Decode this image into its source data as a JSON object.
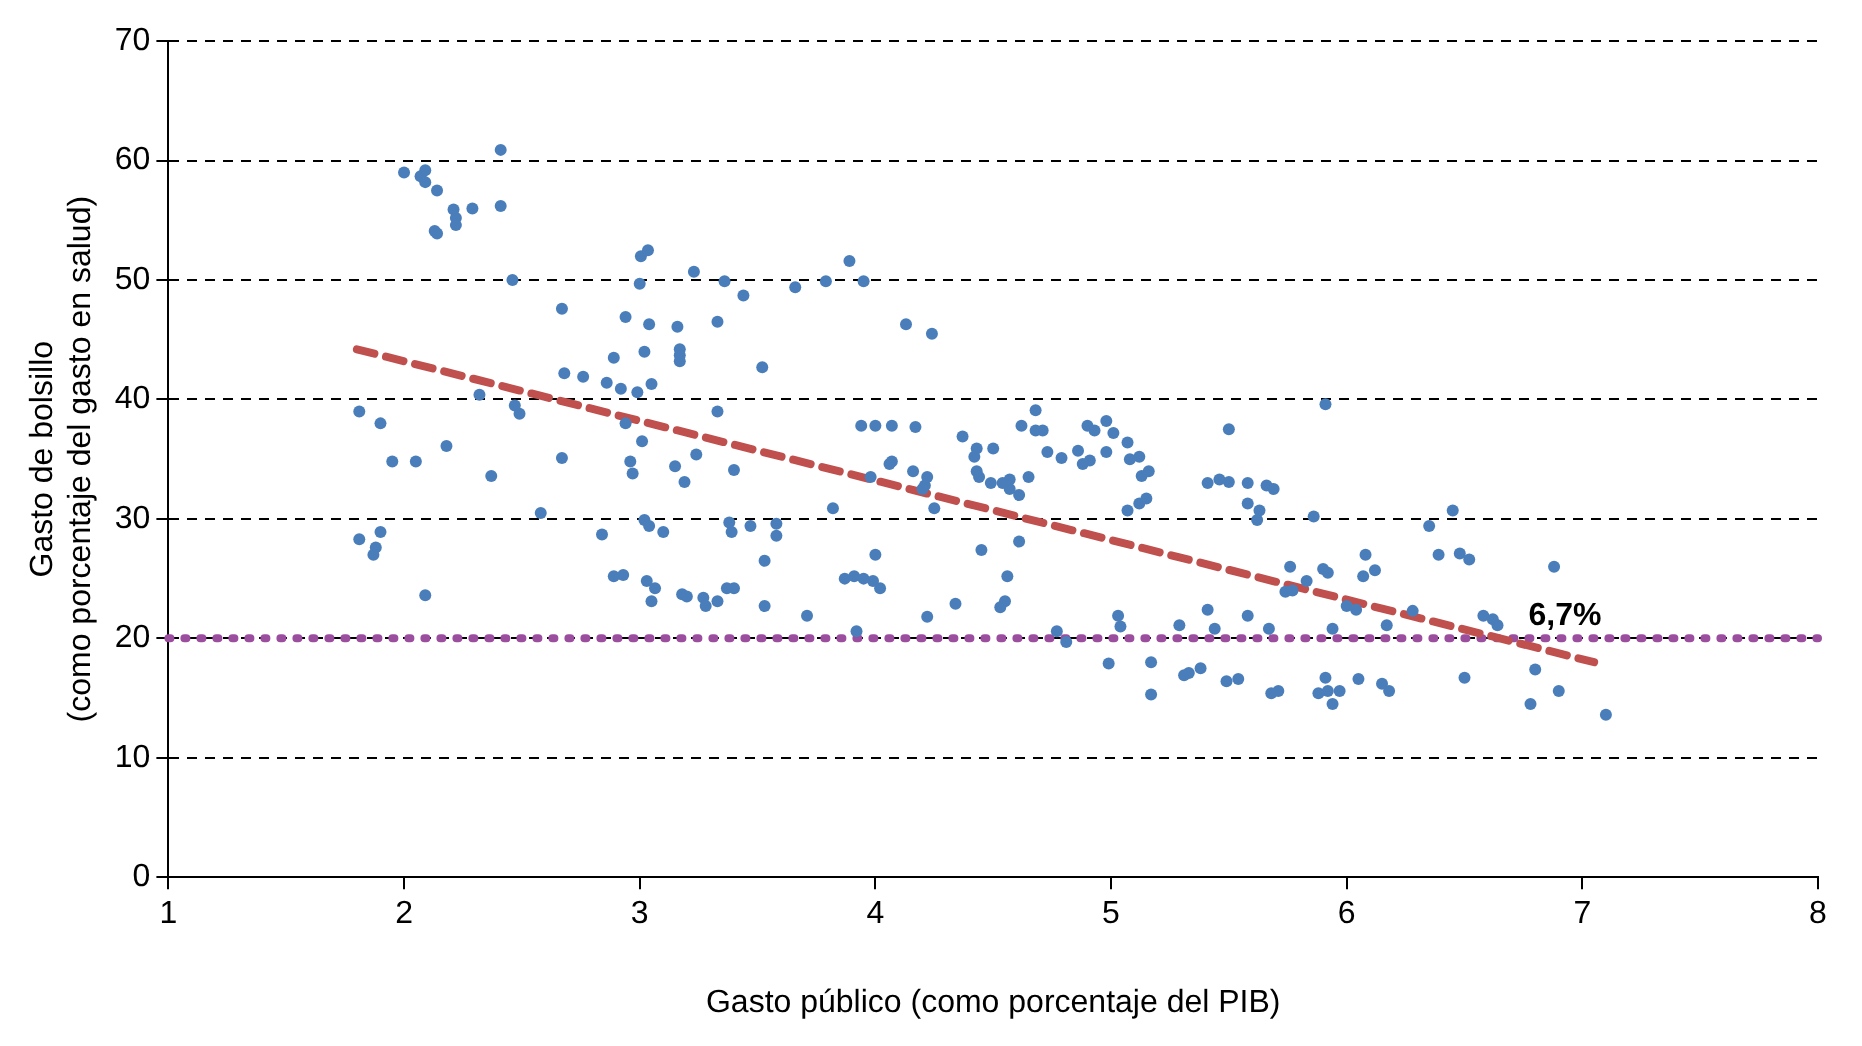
{
  "chart_data": {
    "type": "scatter",
    "xlabel": "Gasto público (como porcentaje del PIB)",
    "ylabel": "Gasto de bolsillo\n(como porcentaje del gasto en salud)",
    "xlim": [
      1,
      8
    ],
    "xticks": [
      1,
      2,
      3,
      4,
      5,
      6,
      7,
      8
    ],
    "ylim": [
      0,
      70
    ],
    "yticks": [
      0,
      10,
      20,
      30,
      40,
      50,
      60,
      70
    ],
    "grid": "y",
    "legend": false,
    "series": [
      {
        "color": "#4a7ebb",
        "marker": "circle",
        "x": [
          1.81,
          1.81,
          1.9,
          1.88,
          1.9,
          1.87,
          1.95,
          2.0,
          2.07,
          2.09,
          2.09,
          2.14,
          2.13,
          2.14,
          2.21,
          2.22,
          2.22,
          2.29,
          2.41,
          2.41,
          2.18,
          2.05,
          2.09,
          2.32,
          2.37,
          2.46,
          2.47,
          2.49,
          2.58,
          2.67,
          2.67,
          2.68,
          2.76,
          2.84,
          2.86,
          2.89,
          2.92,
          2.94,
          2.89,
          2.93,
          2.94,
          2.96,
          2.97,
          2.99,
          3.0,
          3.005,
          3.035,
          3.02,
          3.01,
          3.02,
          3.04,
          3.03,
          3.05,
          3.065,
          3.05,
          3.04,
          3.1,
          3.15,
          3.16,
          3.17,
          3.17,
          3.17,
          3.19,
          3.18,
          3.2,
          3.23,
          3.24,
          3.27,
          3.28,
          3.33,
          3.33,
          3.33,
          3.36,
          3.4,
          3.37,
          3.38,
          3.39,
          3.4,
          3.44,
          3.47,
          3.52,
          3.53,
          3.53,
          3.58,
          3.58,
          3.66,
          3.71,
          3.79,
          3.82,
          3.87,
          3.91,
          3.89,
          3.92,
          3.95,
          3.95,
          3.94,
          4.0,
          3.98,
          3.99,
          4.0,
          4.02,
          4.06,
          4.07,
          4.07,
          4.13,
          4.17,
          4.21,
          4.22,
          4.24,
          4.16,
          4.2,
          4.22,
          4.25,
          4.34,
          4.37,
          4.42,
          4.43,
          4.43,
          4.44,
          4.45,
          4.49,
          4.5,
          4.53,
          4.55,
          4.54,
          4.57,
          4.57,
          4.56,
          4.61,
          4.61,
          4.62,
          4.65,
          4.68,
          4.68,
          4.71,
          4.73,
          4.77,
          4.81,
          4.79,
          4.86,
          4.91,
          4.9,
          4.88,
          4.93,
          4.98,
          5.01,
          4.98,
          4.99,
          5.03,
          5.04,
          5.07,
          5.08,
          5.07,
          5.12,
          5.12,
          5.15,
          5.17,
          5.17,
          5.13,
          5.16,
          5.29,
          5.31,
          5.33,
          5.38,
          5.41,
          5.41,
          5.44,
          5.46,
          5.5,
          5.49,
          5.5,
          5.54,
          5.58,
          5.58,
          5.62,
          5.58,
          5.63,
          5.66,
          5.69,
          5.67,
          5.68,
          5.71,
          5.74,
          5.76,
          5.77,
          5.83,
          5.86,
          5.88,
          5.9,
          5.91,
          5.91,
          5.92,
          5.92,
          5.94,
          5.97,
          5.94,
          6.0,
          6.04,
          6.05,
          6.07,
          6.08,
          6.12,
          6.15,
          6.18,
          6.17,
          6.28,
          6.35,
          6.39,
          6.45,
          6.48,
          6.5,
          6.52,
          6.58,
          6.62,
          6.64,
          6.78,
          6.8,
          6.9,
          6.88,
          7.1
        ],
        "values": [
          39.0,
          28.3,
          38.0,
          27.6,
          28.9,
          27.0,
          34.8,
          59.0,
          58.7,
          59.2,
          58.2,
          57.5,
          54.1,
          53.9,
          55.9,
          55.2,
          54.6,
          56.0,
          60.9,
          56.2,
          36.1,
          34.8,
          23.6,
          40.4,
          33.6,
          50.0,
          39.5,
          38.8,
          30.5,
          47.6,
          35.1,
          42.2,
          41.9,
          28.7,
          41.4,
          43.5,
          40.9,
          38.0,
          25.2,
          25.3,
          46.9,
          34.8,
          33.8,
          40.6,
          49.7,
          52.0,
          52.5,
          44.0,
          36.5,
          29.9,
          29.4,
          24.8,
          23.1,
          24.2,
          41.3,
          46.3,
          28.9,
          34.4,
          46.1,
          44.2,
          43.7,
          43.2,
          33.1,
          23.7,
          23.5,
          50.7,
          35.4,
          23.4,
          22.7,
          39.0,
          23.1,
          46.5,
          49.9,
          24.2,
          24.2,
          29.7,
          28.9,
          34.1,
          48.7,
          29.4,
          42.7,
          26.5,
          22.7,
          28.6,
          29.6,
          49.4,
          21.9,
          49.9,
          30.9,
          25.0,
          25.2,
          51.6,
          20.6,
          25.0,
          49.9,
          37.8,
          37.8,
          33.5,
          24.8,
          27.0,
          24.2,
          34.6,
          34.8,
          37.8,
          46.3,
          37.7,
          32.8,
          33.5,
          45.5,
          34.0,
          32.5,
          21.8,
          30.9,
          22.9,
          36.9,
          35.2,
          34.0,
          35.9,
          33.5,
          27.4,
          33.0,
          35.9,
          22.6,
          23.1,
          33.0,
          33.3,
          32.5,
          25.2,
          28.1,
          32.0,
          37.8,
          33.5,
          39.1,
          37.4,
          37.4,
          35.6,
          20.6,
          19.7,
          35.1,
          35.7,
          34.9,
          37.8,
          34.6,
          37.4,
          38.2,
          37.2,
          35.6,
          17.9,
          21.9,
          21.0,
          36.4,
          35.0,
          30.7,
          35.2,
          31.3,
          31.7,
          15.3,
          18.0,
          33.6,
          34.0,
          21.1,
          16.9,
          17.1,
          17.5,
          22.4,
          33.0,
          20.8,
          33.3,
          33.1,
          16.4,
          37.5,
          16.6,
          33.0,
          31.3,
          29.9,
          21.9,
          30.7,
          32.8,
          32.5,
          20.8,
          15.4,
          15.6,
          23.9,
          26.0,
          24.0,
          24.8,
          30.2,
          15.4,
          25.8,
          16.7,
          39.6,
          25.5,
          15.6,
          14.5,
          15.6,
          20.8,
          22.7,
          22.4,
          16.6,
          25.2,
          27.0,
          25.7,
          16.2,
          15.6,
          21.1,
          22.3,
          29.4,
          27.0,
          30.7,
          27.1,
          16.7,
          26.6,
          21.9,
          21.6,
          21.1,
          14.5,
          17.4,
          15.6,
          26.0,
          13.6
        ]
      },
      {
        "type": "line",
        "color": "#c0504d",
        "marker": "none",
        "line_style": "dashed",
        "x": [
          1.8,
          7.05
        ],
        "values": [
          44.2,
          18.0
        ]
      }
    ],
    "ref_lines": [
      {
        "axis": "y",
        "value": 20,
        "color": "#9b4d9e",
        "line_style": "dotted"
      }
    ],
    "annotations": [
      {
        "text": "6,7%",
        "x": 6.67,
        "y": 20
      }
    ]
  }
}
